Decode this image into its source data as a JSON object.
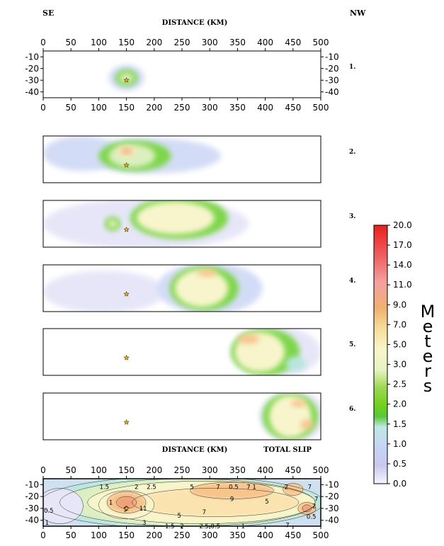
{
  "labels": {
    "se": "SE",
    "nw": "NW",
    "distance_top": "DISTANCE (KM)",
    "distance_bottom": "DISTANCE (KM)",
    "total_slip": "TOTAL SLIP"
  },
  "panel_labels": [
    "1.",
    "2.",
    "3.",
    "4.",
    "5.",
    "6."
  ],
  "colorbar": {
    "label": "Meters",
    "ticks": [
      "20.0",
      "17.0",
      "14.0",
      "11.0",
      "9.0",
      "7.0",
      "5.0",
      "3.0",
      "2.5",
      "2.0",
      "1.5",
      "1.0",
      "0.5",
      "0.0"
    ],
    "colors": [
      "#e8201a",
      "#ef6060",
      "#f4a0a0",
      "#f2b070",
      "#f7dc9a",
      "#faf6c8",
      "#e6f2c2",
      "#9bd84f",
      "#6fd11c",
      "#58c83a",
      "#bfe8e2",
      "#c6d6f5",
      "#c8c8ef",
      "#f6f6fd"
    ]
  },
  "chart_data": {
    "type": "heatmap",
    "xlabel": "DISTANCE (KM)",
    "x_ticks": [
      0,
      50,
      100,
      150,
      200,
      250,
      300,
      350,
      400,
      450,
      500
    ],
    "y_ticks": [
      -10,
      -20,
      -30,
      -40
    ],
    "xlim": [
      0,
      500
    ],
    "ylim": [
      -45,
      -5
    ],
    "hypocenter": {
      "x": 150,
      "y": -30
    },
    "unit": "Meters",
    "panels": [
      {
        "label": "1.",
        "blobs": [
          {
            "x": 150,
            "y": -28,
            "rx": 32,
            "ry": 11,
            "level": 1
          },
          {
            "x": 150,
            "y": -28,
            "rx": 20,
            "ry": 7,
            "level": 2.2
          },
          {
            "x": 150,
            "y": -28,
            "rx": 13,
            "ry": 4,
            "level": 3
          }
        ]
      },
      {
        "label": "2.",
        "blobs": [
          {
            "x": 70,
            "y": -20,
            "rx": 70,
            "ry": 15,
            "level": 1
          },
          {
            "x": 195,
            "y": -22,
            "rx": 125,
            "ry": 15,
            "level": 1
          },
          {
            "x": 165,
            "y": -22,
            "rx": 65,
            "ry": 13,
            "level": 2.2
          },
          {
            "x": 160,
            "y": -22,
            "rx": 42,
            "ry": 10,
            "level": 4
          },
          {
            "x": 150,
            "y": -18,
            "rx": 18,
            "ry": 4,
            "level": 8
          },
          {
            "x": 150,
            "y": -18,
            "rx": 9,
            "ry": 2,
            "level": 11
          }
        ]
      },
      {
        "label": "3.",
        "blobs": [
          {
            "x": 185,
            "y": -25,
            "rx": 185,
            "ry": 22,
            "level": 0.7
          },
          {
            "x": 245,
            "y": -20,
            "rx": 88,
            "ry": 18,
            "level": 2.2
          },
          {
            "x": 238,
            "y": -20,
            "rx": 70,
            "ry": 14,
            "level": 5
          },
          {
            "x": 125,
            "y": -25,
            "rx": 14,
            "ry": 6,
            "level": 2.2
          },
          {
            "x": 125,
            "y": -25,
            "rx": 8,
            "ry": 3,
            "level": 5
          }
        ]
      },
      {
        "label": "4.",
        "blobs": [
          {
            "x": 110,
            "y": -28,
            "rx": 110,
            "ry": 18,
            "level": 0.5
          },
          {
            "x": 300,
            "y": -25,
            "rx": 95,
            "ry": 22,
            "level": 1
          },
          {
            "x": 290,
            "y": -25,
            "rx": 62,
            "ry": 19,
            "level": 2.2
          },
          {
            "x": 285,
            "y": -25,
            "rx": 48,
            "ry": 16,
            "level": 5
          },
          {
            "x": 295,
            "y": -12,
            "rx": 18,
            "ry": 3,
            "level": 9
          }
        ]
      },
      {
        "label": "5.",
        "blobs": [
          {
            "x": 420,
            "y": -25,
            "rx": 80,
            "ry": 22,
            "level": 0.7
          },
          {
            "x": 400,
            "y": -25,
            "rx": 62,
            "ry": 20,
            "level": 2.2
          },
          {
            "x": 390,
            "y": -25,
            "rx": 45,
            "ry": 17,
            "level": 5
          },
          {
            "x": 370,
            "y": -14,
            "rx": 20,
            "ry": 4,
            "level": 9
          },
          {
            "x": 455,
            "y": -35,
            "rx": 18,
            "ry": 6,
            "level": 1.5
          }
        ]
      },
      {
        "label": "6.",
        "blobs": [
          {
            "x": 450,
            "y": -25,
            "rx": 60,
            "ry": 22,
            "level": 0.7
          },
          {
            "x": 445,
            "y": -25,
            "rx": 50,
            "ry": 20,
            "level": 2.2
          },
          {
            "x": 445,
            "y": -25,
            "rx": 38,
            "ry": 18,
            "level": 5
          },
          {
            "x": 460,
            "y": -14,
            "rx": 14,
            "ry": 3,
            "level": 9
          },
          {
            "x": 475,
            "y": -32,
            "rx": 12,
            "ry": 4,
            "level": 9
          }
        ]
      }
    ],
    "total_slip": {
      "label": "TOTAL SLIP",
      "blobs": [
        {
          "x": 250,
          "y": -25,
          "rx": 255,
          "ry": 22,
          "level": 1.5
        },
        {
          "x": 260,
          "y": -25,
          "rx": 230,
          "ry": 20,
          "level": 3
        },
        {
          "x": 285,
          "y": -25,
          "rx": 205,
          "ry": 18,
          "level": 5
        },
        {
          "x": 310,
          "y": -25,
          "rx": 150,
          "ry": 12,
          "level": 7
        },
        {
          "x": 340,
          "y": -15,
          "rx": 75,
          "ry": 7,
          "level": 9
        },
        {
          "x": 150,
          "y": -27,
          "rx": 50,
          "ry": 12,
          "level": 5
        },
        {
          "x": 150,
          "y": -25,
          "rx": 35,
          "ry": 9,
          "level": 9
        },
        {
          "x": 150,
          "y": -25,
          "rx": 18,
          "ry": 5,
          "level": 11
        },
        {
          "x": 450,
          "y": -14,
          "rx": 18,
          "ry": 5,
          "level": 9
        },
        {
          "x": 475,
          "y": -30,
          "rx": 16,
          "ry": 5,
          "level": 9
        },
        {
          "x": 475,
          "y": -30,
          "rx": 8,
          "ry": 3,
          "level": 11
        },
        {
          "x": 30,
          "y": -28,
          "rx": 42,
          "ry": 15,
          "level": 0.7
        }
      ],
      "contour_labels": [
        {
          "x": 110,
          "y": -12,
          "text": "1.5"
        },
        {
          "x": 168,
          "y": -12,
          "text": "2"
        },
        {
          "x": 195,
          "y": -12,
          "text": "2.5"
        },
        {
          "x": 268,
          "y": -12,
          "text": "5"
        },
        {
          "x": 315,
          "y": -12,
          "text": "7"
        },
        {
          "x": 343,
          "y": -12,
          "text": "0.5"
        },
        {
          "x": 375,
          "y": -12,
          "text": "7 1"
        },
        {
          "x": 438,
          "y": -12,
          "text": "2"
        },
        {
          "x": 480,
          "y": -12,
          "text": "7"
        },
        {
          "x": 340,
          "y": -22,
          "text": "9"
        },
        {
          "x": 403,
          "y": -24,
          "text": "5"
        },
        {
          "x": 290,
          "y": -33,
          "text": "7"
        },
        {
          "x": 245,
          "y": -36,
          "text": "5"
        },
        {
          "x": 122,
          "y": -25,
          "text": "1"
        },
        {
          "x": 150,
          "y": -30,
          "text": "9"
        },
        {
          "x": 180,
          "y": -30,
          "text": "11"
        },
        {
          "x": 148,
          "y": -31,
          "text": "5"
        },
        {
          "x": 10,
          "y": -32,
          "text": "0.5"
        },
        {
          "x": 7,
          "y": -42,
          "text": "1"
        },
        {
          "x": 182,
          "y": -42,
          "text": "3"
        },
        {
          "x": 228,
          "y": -45,
          "text": "1.5"
        },
        {
          "x": 250,
          "y": -45,
          "text": "2"
        },
        {
          "x": 300,
          "y": -45,
          "text": "2.5 0.5"
        },
        {
          "x": 360,
          "y": -45,
          "text": "1"
        },
        {
          "x": 440,
          "y": -44,
          "text": "7"
        },
        {
          "x": 483,
          "y": -37,
          "text": "0.5"
        },
        {
          "x": 488,
          "y": -28,
          "text": "2"
        },
        {
          "x": 492,
          "y": -22,
          "text": "7"
        }
      ]
    }
  }
}
